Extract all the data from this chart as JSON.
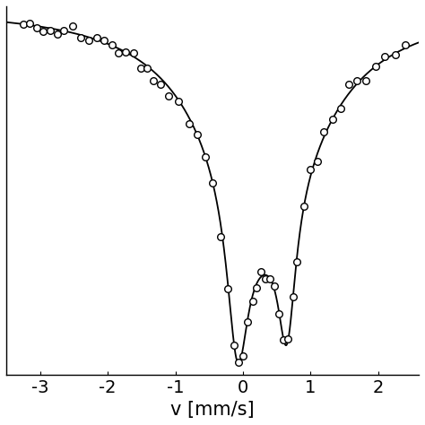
{
  "xlabel": "v [mm/s]",
  "xlim": [
    -3.5,
    2.6
  ],
  "x_ticks": [
    -3,
    -2,
    -1,
    0,
    1,
    2
  ],
  "background_color": "#ffffff",
  "line_color": "#000000",
  "marker_color": "#000000",
  "marker_size": 5.5,
  "marker_edge_width": 1.0,
  "line_width": 1.3,
  "figsize": [
    4.74,
    4.74
  ],
  "dpi": 100,
  "tick_fontsize": 14,
  "xlabel_fontsize": 15
}
